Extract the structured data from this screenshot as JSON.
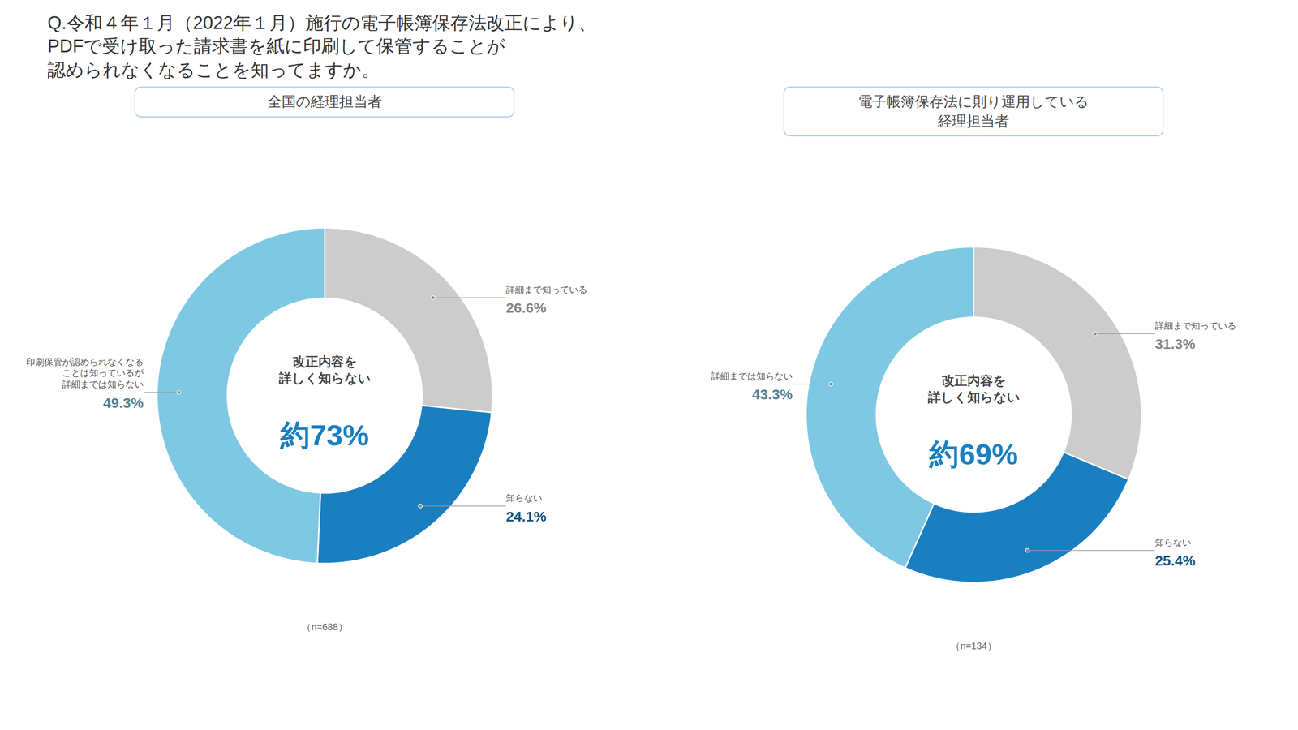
{
  "title": "Q.令和４年１月（2022年１月）施行の電子帳簿保存法改正により、\nPDFで受け取った請求書を紙に印刷して保管することが\n認められなくなることを知ってますか。",
  "chart_data": [
    {
      "type": "pie",
      "title": "全国の経理担当者",
      "categories": [
        "詳細まで知っている",
        "知らない",
        "印刷保管が認められなくなる\nことは知っているが\n詳細までは知らない"
      ],
      "values": [
        26.6,
        24.1,
        49.3
      ],
      "value_labels": [
        "26.6%",
        "24.1%",
        "49.3%"
      ],
      "data_labels": true,
      "colors": [
        "#cccccc",
        "#1a7fc1",
        "#7ec8e3"
      ],
      "annotations": [
        "改正内容を\n詳しく知らない",
        "約73%",
        "（n=688）"
      ]
    },
    {
      "type": "pie",
      "title": "電子帳簿保存法に則り運用している\n経理担当者",
      "categories": [
        "詳細まで知っている",
        "知らない",
        "詳細までは知らない"
      ],
      "values": [
        31.3,
        25.4,
        43.3
      ],
      "value_labels": [
        "31.3%",
        "25.4%",
        "43.3%"
      ],
      "data_labels": true,
      "colors": [
        "#cccccc",
        "#1a7fc1",
        "#7ec8e3"
      ],
      "annotations": [
        "改正内容を\n詳しく知らない",
        "約69%",
        "（n=134）"
      ]
    }
  ]
}
